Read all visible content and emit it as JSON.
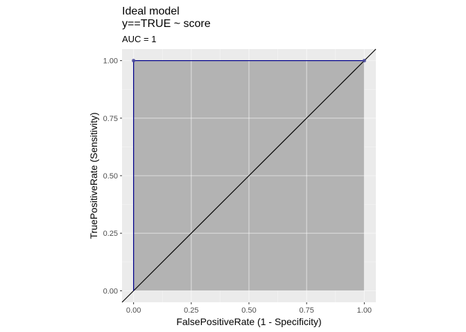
{
  "chart_data": {
    "type": "area",
    "title": "Ideal model",
    "title_line2": "y==TRUE ~ score",
    "subtitle": "AUC = 1",
    "xlabel": "FalsePositiveRate (1 - Specificity)",
    "ylabel": "TruePositiveRate (Sensitivity)",
    "xlim": [
      -0.05,
      1.05
    ],
    "ylim": [
      -0.05,
      1.05
    ],
    "x_ticks": [
      0,
      0.25,
      0.5,
      0.75,
      1
    ],
    "y_ticks": [
      0,
      0.25,
      0.5,
      0.75,
      1
    ],
    "x_tick_labels": [
      "0.00",
      "0.25",
      "0.50",
      "0.75",
      "1.00"
    ],
    "y_tick_labels": [
      "0.00",
      "0.25",
      "0.50",
      "0.75",
      "1.00"
    ],
    "grid": true,
    "roc_curve": {
      "x": [
        0,
        0,
        1
      ],
      "y": [
        0,
        1,
        1
      ]
    },
    "roc_points": {
      "x": [
        0,
        1
      ],
      "y": [
        1,
        1
      ]
    },
    "diagonal": {
      "intercept": 0,
      "slope": 1
    },
    "colors": {
      "panel_background": "#ebebeb",
      "grid_major": "#ffffff",
      "grid_minor": "#f5f5f5",
      "area_fill": "#b3b3b3",
      "roc_line": "#00008b",
      "roc_point": "#4b4b9b",
      "diagonal": "#000000"
    }
  }
}
